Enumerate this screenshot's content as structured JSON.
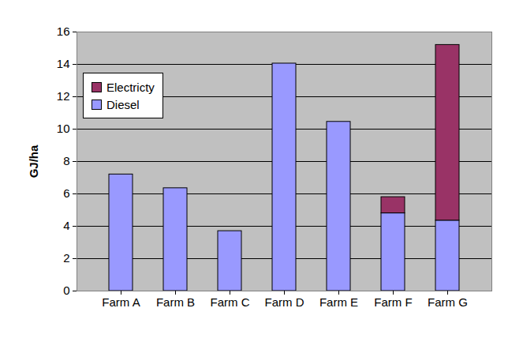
{
  "chart_data": {
    "type": "bar",
    "stacked": true,
    "y_label": "GJ/ha",
    "categories": [
      "Farm A",
      "Farm B",
      "Farm C",
      "Farm D",
      "Farm E",
      "Farm F",
      "Farm G"
    ],
    "series": [
      {
        "name": "Diesel",
        "color": "#9999ff",
        "values": [
          7.2,
          6.35,
          3.7,
          14.05,
          10.45,
          4.8,
          4.35
        ]
      },
      {
        "name": "Electricty",
        "color": "#993366",
        "values": [
          0,
          0,
          0,
          0,
          0,
          1.0,
          10.85
        ]
      }
    ],
    "ylim": [
      0,
      16
    ],
    "yticks": [
      0,
      2,
      4,
      6,
      8,
      10,
      12,
      14,
      16
    ],
    "grid": true,
    "legend": "upper left"
  }
}
